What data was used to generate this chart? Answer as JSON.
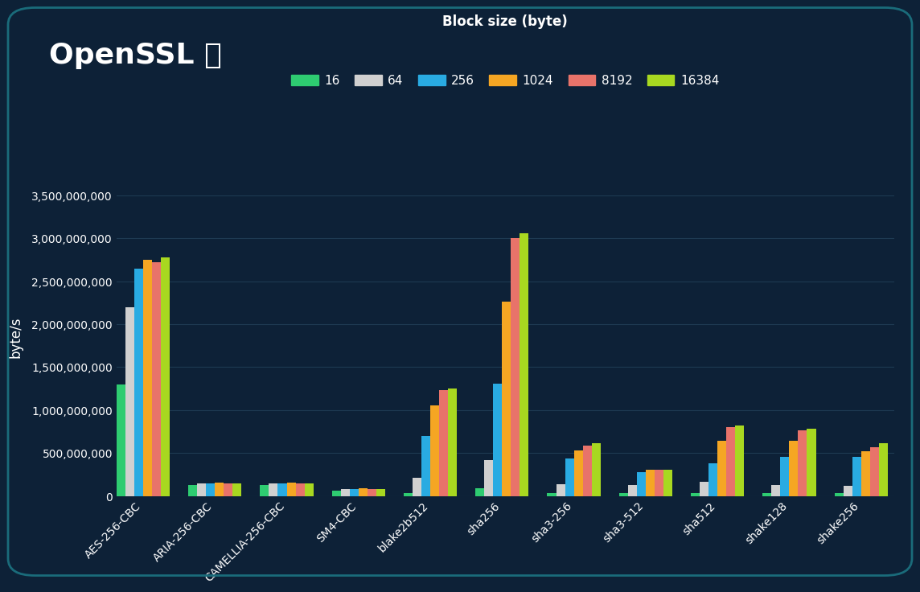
{
  "title": "OpenSSL ⓘ",
  "xlabel": "Block size (byte)",
  "ylabel": "byte/s",
  "background_color": "#0d2137",
  "border_color": "#1a6b7a",
  "plot_background_color": "#0d2137",
  "grid_color": "#1e3a52",
  "text_color": "#ffffff",
  "categories": [
    "AES-256-CBC",
    "ARIA-256-CBC",
    "CAMELLIA-256-CBC",
    "SM4-CBC",
    "blake2b512",
    "sha256",
    "sha3-256",
    "sha3-512",
    "sha512",
    "shake128",
    "shake256"
  ],
  "block_sizes": [
    "16",
    "64",
    "256",
    "1024",
    "8192",
    "16384"
  ],
  "bar_colors": [
    "#2ecc71",
    "#d0d0d0",
    "#29abe2",
    "#f5a623",
    "#e8736a",
    "#a8d820"
  ],
  "data": {
    "AES-256-CBC": [
      1300000000,
      2200000000,
      2650000000,
      2750000000,
      2720000000,
      2780000000
    ],
    "ARIA-256-CBC": [
      130000000,
      145000000,
      150000000,
      155000000,
      145000000,
      145000000
    ],
    "CAMELLIA-256-CBC": [
      130000000,
      145000000,
      150000000,
      155000000,
      145000000,
      145000000
    ],
    "SM4-CBC": [
      65000000,
      78000000,
      82000000,
      88000000,
      82000000,
      82000000
    ],
    "blake2b512": [
      38000000,
      210000000,
      700000000,
      1050000000,
      1230000000,
      1250000000
    ],
    "sha256": [
      90000000,
      420000000,
      1310000000,
      2260000000,
      3000000000,
      3060000000
    ],
    "sha3-256": [
      38000000,
      140000000,
      440000000,
      530000000,
      590000000,
      610000000
    ],
    "sha3-512": [
      32000000,
      130000000,
      280000000,
      310000000,
      305000000,
      305000000
    ],
    "sha512": [
      38000000,
      165000000,
      385000000,
      640000000,
      800000000,
      820000000
    ],
    "shake128": [
      32000000,
      130000000,
      455000000,
      640000000,
      760000000,
      780000000
    ],
    "shake256": [
      32000000,
      115000000,
      455000000,
      520000000,
      570000000,
      610000000
    ]
  },
  "ylim": [
    0,
    3700000000
  ],
  "yticks": [
    0,
    500000000,
    1000000000,
    1500000000,
    2000000000,
    2500000000,
    3000000000,
    3500000000
  ],
  "title_fontsize": 26,
  "axis_label_fontsize": 12,
  "tick_fontsize": 10,
  "legend_fontsize": 11
}
